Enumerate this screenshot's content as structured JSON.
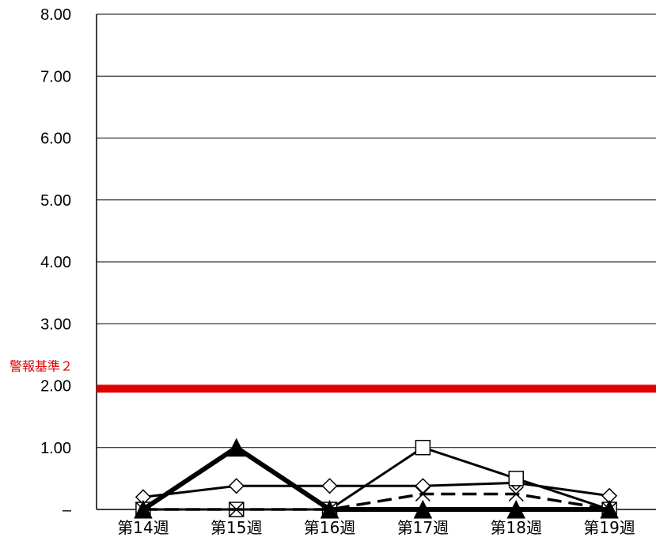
{
  "chart_data": {
    "type": "line",
    "categories": [
      "第14週",
      "第15週",
      "第16週",
      "第17週",
      "第18週",
      "第19週"
    ],
    "ylim": [
      0,
      8
    ],
    "y_ticks": [
      {
        "value": 0,
        "label": "–"
      },
      {
        "value": 1,
        "label": "1.00"
      },
      {
        "value": 2,
        "label": "2.00"
      },
      {
        "value": 3,
        "label": "3.00"
      },
      {
        "value": 4,
        "label": "4.00"
      },
      {
        "value": 5,
        "label": "5.00"
      },
      {
        "value": 6,
        "label": "6.00"
      },
      {
        "value": 7,
        "label": "7.00"
      },
      {
        "value": 8,
        "label": "8.00"
      }
    ],
    "grid": true,
    "reference_line": {
      "label": "警報基準２",
      "value": 1.95,
      "color": "#e00000"
    },
    "series": [
      {
        "marker": "diamond",
        "line": "solid",
        "values": [
          0.2,
          0.38,
          0.38,
          0.38,
          0.43,
          0.22
        ]
      },
      {
        "marker": "square",
        "line": "solid",
        "values": [
          0,
          0,
          0,
          1.0,
          0.5,
          0
        ]
      },
      {
        "marker": "x",
        "line": "dashed",
        "values": [
          0,
          0,
          0,
          0.25,
          0.25,
          0
        ]
      },
      {
        "marker": "triangle",
        "line": "bold",
        "values": [
          0,
          1.0,
          0,
          0,
          0,
          0
        ]
      }
    ]
  }
}
